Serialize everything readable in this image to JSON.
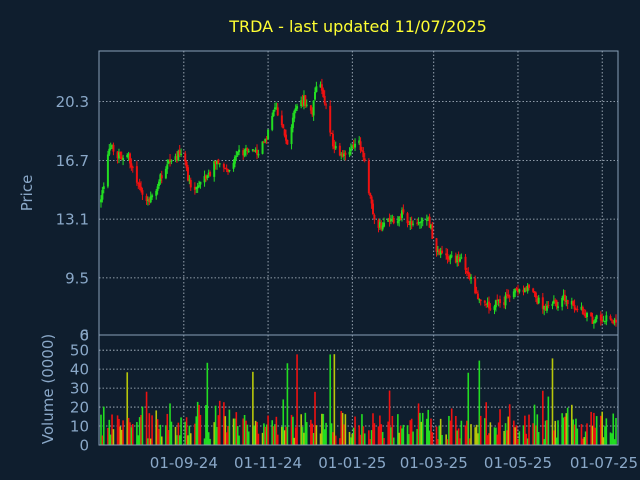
{
  "chart_data": {
    "type": "candlestick",
    "title": "TRDA - last updated 11/07/2025",
    "colors": {
      "background": "#0f1e2e",
      "title": "#ffff33",
      "axis_text": "#8aa8c8",
      "frame": "#8aa0b8",
      "grid": "#b8c4d0",
      "up": "#22dd22",
      "down": "#ee1111",
      "volume_mid": "#b7c70a"
    },
    "price_panel": {
      "ylabel": "Price",
      "y_ticks": [
        "20.3",
        "16.7",
        "13.1",
        "9.5",
        "6.0"
      ],
      "ylim": [
        6.0,
        23.4
      ],
      "grid": true
    },
    "volume_panel": {
      "ylabel": "Volume (0000)",
      "y_ticks": [
        "50",
        "40",
        "30",
        "20",
        "10",
        "0"
      ],
      "ylim": [
        0,
        58
      ],
      "grid": true
    },
    "x_ticks": [
      "01-09-24",
      "01-11-24",
      "01-01-25",
      "01-03-25",
      "01-05-25",
      "01-07-25"
    ],
    "x_range": [
      "2024-07-03",
      "2025-07-11"
    ],
    "price_path": [
      [
        "2024-07-03",
        14.2
      ],
      [
        "2024-07-06",
        15.6
      ],
      [
        "2024-07-09",
        17.6
      ],
      [
        "2024-07-13",
        17.2
      ],
      [
        "2024-07-17",
        16.9
      ],
      [
        "2024-07-21",
        17.3
      ],
      [
        "2024-07-26",
        16.3
      ],
      [
        "2024-07-31",
        15.1
      ],
      [
        "2024-08-05",
        14.1
      ],
      [
        "2024-08-12",
        14.9
      ],
      [
        "2024-08-18",
        16.3
      ],
      [
        "2024-08-25",
        16.7
      ],
      [
        "2024-08-31",
        17.4
      ],
      [
        "2024-09-05",
        15.3
      ],
      [
        "2024-09-12",
        15.0
      ],
      [
        "2024-09-18",
        15.7
      ],
      [
        "2024-09-25",
        16.7
      ],
      [
        "2024-10-02",
        16.1
      ],
      [
        "2024-10-09",
        17.1
      ],
      [
        "2024-10-17",
        17.3
      ],
      [
        "2024-10-24",
        17.2
      ],
      [
        "2024-10-31",
        18.2
      ],
      [
        "2024-11-05",
        20.0
      ],
      [
        "2024-11-10",
        19.3
      ],
      [
        "2024-11-15",
        17.8
      ],
      [
        "2024-11-20",
        19.6
      ],
      [
        "2024-11-27",
        20.4
      ],
      [
        "2024-12-03",
        19.7
      ],
      [
        "2024-12-07",
        21.6
      ],
      [
        "2024-12-13",
        20.2
      ],
      [
        "2024-12-18",
        17.6
      ],
      [
        "2024-12-24",
        17.0
      ],
      [
        "2024-12-31",
        17.5
      ],
      [
        "2025-01-04",
        17.8
      ],
      [
        "2025-01-08",
        17.5
      ],
      [
        "2025-01-13",
        14.8
      ],
      [
        "2025-01-18",
        12.9
      ],
      [
        "2025-01-24",
        12.7
      ],
      [
        "2025-01-31",
        13.0
      ],
      [
        "2025-02-06",
        13.4
      ],
      [
        "2025-02-12",
        12.9
      ],
      [
        "2025-02-19",
        13.0
      ],
      [
        "2025-02-25",
        13.2
      ],
      [
        "2025-03-03",
        11.1
      ],
      [
        "2025-03-09",
        10.7
      ],
      [
        "2025-03-15",
        10.8
      ],
      [
        "2025-03-21",
        10.5
      ],
      [
        "2025-03-27",
        9.5
      ],
      [
        "2025-04-02",
        8.3
      ],
      [
        "2025-04-08",
        7.7
      ],
      [
        "2025-04-14",
        8.0
      ],
      [
        "2025-04-20",
        7.9
      ],
      [
        "2025-04-26",
        8.7
      ],
      [
        "2025-05-02",
        8.9
      ],
      [
        "2025-05-08",
        8.8
      ],
      [
        "2025-05-14",
        8.2
      ],
      [
        "2025-05-20",
        7.8
      ],
      [
        "2025-05-27",
        7.9
      ],
      [
        "2025-06-03",
        8.2
      ],
      [
        "2025-06-10",
        7.9
      ],
      [
        "2025-06-17",
        7.4
      ],
      [
        "2025-06-24",
        6.9
      ],
      [
        "2025-07-01",
        7.0
      ],
      [
        "2025-07-06",
        7.3
      ],
      [
        "2025-07-11",
        6.6
      ]
    ]
  }
}
